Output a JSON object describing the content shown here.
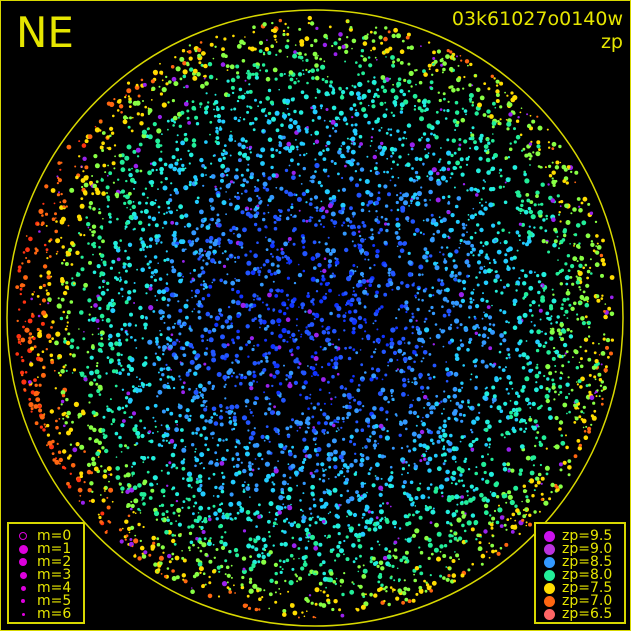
{
  "direction_label": "NE",
  "frame_id": "03k61027o0140w",
  "plot_quantity": "zp",
  "horizon_color": "#e6e600",
  "magnitude_legend": {
    "symbol_color": "#dd00dd",
    "items": [
      {
        "label": "m=0",
        "hollow": true
      },
      {
        "label": "m=1"
      },
      {
        "label": "m=2"
      },
      {
        "label": "m=3"
      },
      {
        "label": "m=4"
      },
      {
        "label": "m=5"
      },
      {
        "label": "m=6"
      }
    ]
  },
  "zp_legend": {
    "items": [
      {
        "label": "zp=9.5",
        "color": "#cc11ee"
      },
      {
        "label": "zp=9.0",
        "color": "#bb33dd"
      },
      {
        "label": "zp=8.5",
        "color": "#3399ff"
      },
      {
        "label": "zp=8.0",
        "color": "#22ee99"
      },
      {
        "label": "zp=7.5",
        "color": "#ffdd00"
      },
      {
        "label": "zp=7.0",
        "color": "#ff6611"
      },
      {
        "label": "zp=6.5",
        "color": "#ff6666"
      }
    ]
  }
}
